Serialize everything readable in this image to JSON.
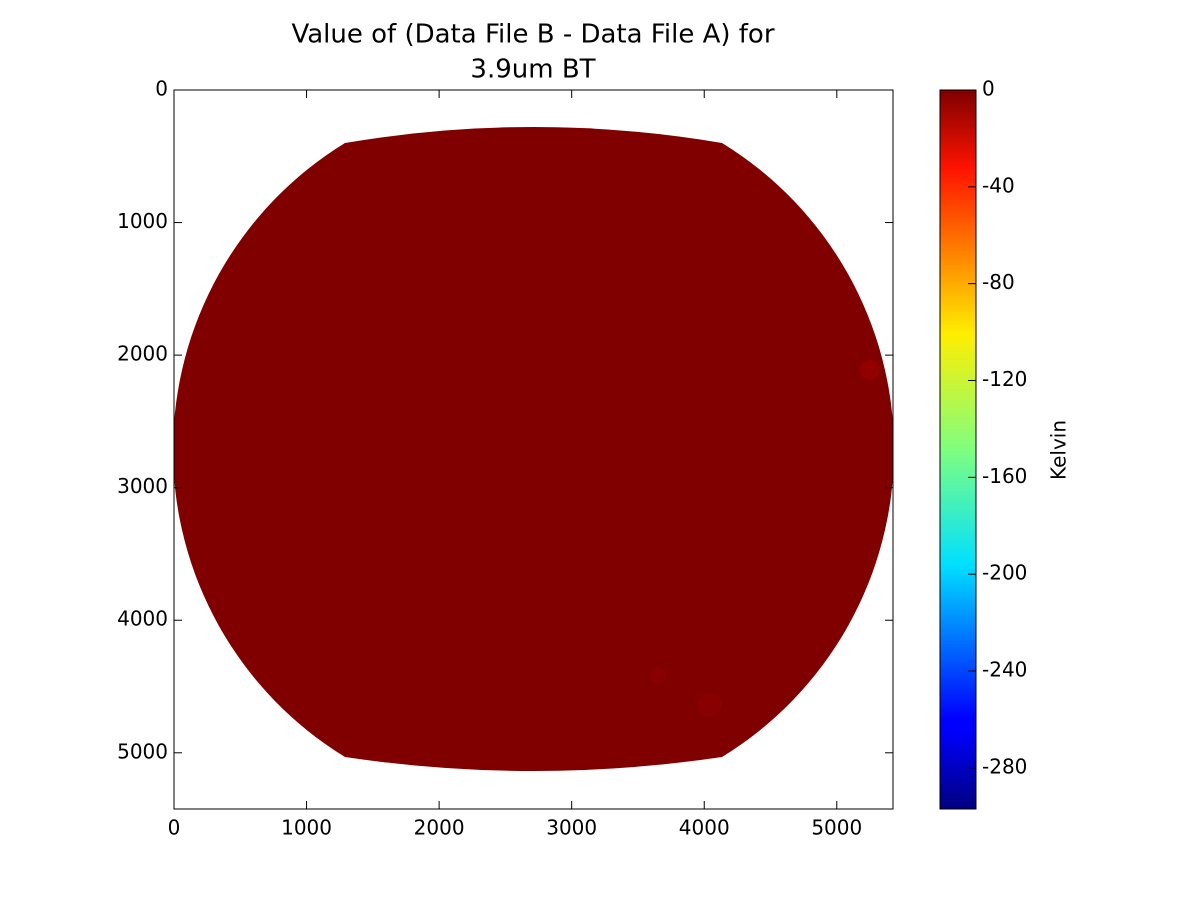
{
  "chart_data": {
    "type": "heatmap",
    "title": [
      "Value of (Data File B - Data File A) for",
      "3.9um BT"
    ],
    "xlim": [
      0,
      5424
    ],
    "ylim": [
      5424,
      0
    ],
    "xticks": [
      0,
      1000,
      2000,
      3000,
      4000,
      5000
    ],
    "yticks": [
      0,
      1000,
      2000,
      3000,
      4000,
      5000
    ],
    "colorbar": {
      "label": "Kelvin",
      "lim": [
        -297,
        0
      ],
      "ticks": [
        0,
        -40,
        -80,
        -120,
        -160,
        -200,
        -240,
        -280
      ]
    }
  }
}
